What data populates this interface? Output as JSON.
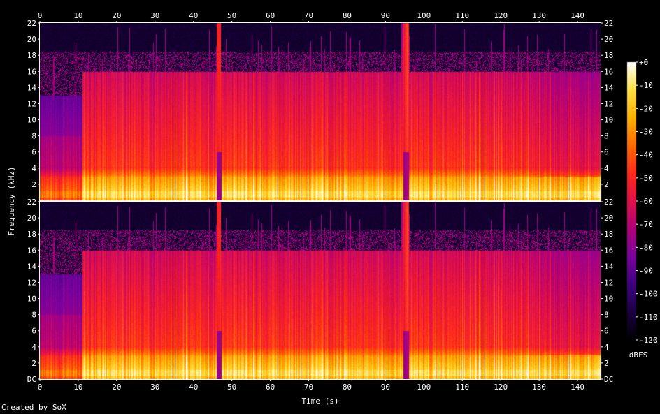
{
  "chart_data": {
    "type": "heatmap",
    "subtype": "spectrogram",
    "channels": 2,
    "xlabel": "Time (s)",
    "ylabel": "Frequency (kHz)",
    "xlim": [
      0,
      146
    ],
    "ylim_khz": [
      0,
      22
    ],
    "x_ticks": [
      0,
      10,
      20,
      30,
      40,
      50,
      60,
      70,
      80,
      90,
      100,
      110,
      120,
      130,
      140
    ],
    "x_tick_labels": [
      "0",
      "10",
      "20",
      "30",
      "40",
      "50",
      "60",
      "70",
      "80",
      "90",
      "100",
      "110",
      "120",
      "130",
      "140"
    ],
    "channel_1_y_tick_labels": [
      "22",
      "20",
      "18",
      "16",
      "14",
      "12",
      "10",
      "8",
      "6",
      "4",
      "2"
    ],
    "channel_2_y_tick_labels": [
      "22",
      "20",
      "18",
      "16",
      "14",
      "12",
      "10",
      "8",
      "6",
      "4",
      "2",
      "DC"
    ],
    "y_tick_values_khz": [
      22,
      20,
      18,
      16,
      14,
      12,
      10,
      8,
      6,
      4,
      2,
      0
    ],
    "colorbar": {
      "label": "dBFS",
      "range": [
        -120,
        0
      ],
      "ticks": [
        0,
        -10,
        -20,
        -30,
        -40,
        -50,
        -60,
        -70,
        -80,
        -90,
        -100,
        -110,
        -120
      ],
      "tick_labels": [
        "+0",
        "-10",
        "-20",
        "-30",
        "-40",
        "-50",
        "-60",
        "-70",
        "-80",
        "-90",
        "-100",
        "-110",
        "-120"
      ],
      "colors": [
        "#000000",
        "#1a0040",
        "#3c0080",
        "#7a00a0",
        "#b0007a",
        "#e0104a",
        "#ff2a1a",
        "#ff6a00",
        "#ffb000",
        "#ffe040",
        "#ffffff"
      ]
    },
    "regions": [
      {
        "start_s": 0,
        "end_s": 11,
        "bandwidth_khz": 13,
        "note": ""
      },
      {
        "start_s": 11,
        "end_s": 46,
        "bandwidth_khz": 16
      },
      {
        "start_s": 46,
        "end_s": 47,
        "bandwidth_khz": 22
      },
      {
        "start_s": 47,
        "end_s": 94,
        "bandwidth_khz": 16
      },
      {
        "start_s": 94,
        "end_s": 96,
        "bandwidth_khz": 22
      },
      {
        "start_s": 96,
        "end_s": 146,
        "bandwidth_khz": 16
      }
    ],
    "grid": false
  },
  "footer": {
    "credit": "Created by SoX"
  }
}
